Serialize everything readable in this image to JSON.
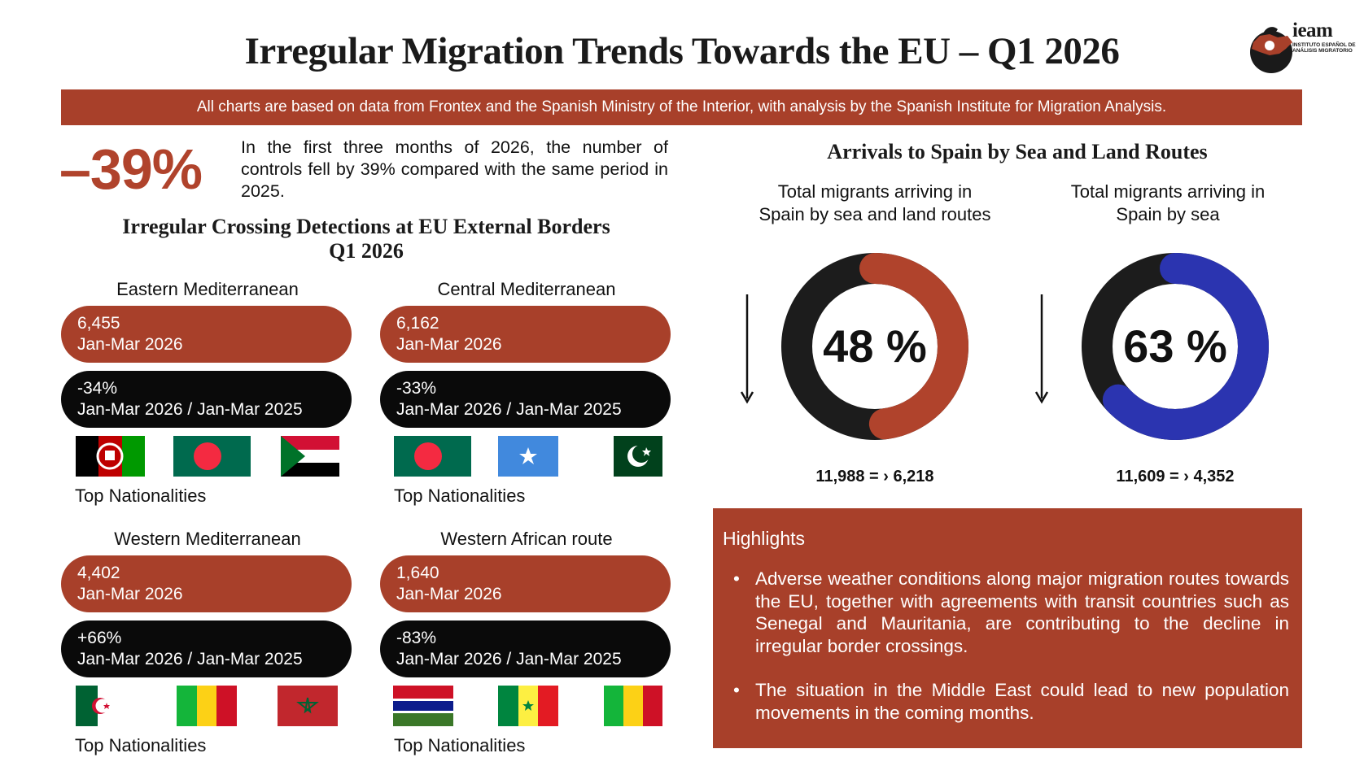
{
  "title": "Irregular Migration Trends Towards the EU – Q1 2026",
  "logo": {
    "name": "ieam",
    "subtitle": "INSTITUTO ESPAÑOL DE ANÁLISIS MIGRATORIO",
    "icon": "spain-map-logo-icon"
  },
  "banner": "All charts are based on data from Frontex and the Spanish Ministry of the Interior, with analysis by the Spanish Institute for Migration Analysis.",
  "headline_stat": {
    "value": "–39%",
    "text": "In the first three months of 2026, the number of controls fell by 39% compared with the same period in 2025."
  },
  "left_section": {
    "title_line1": "Irregular Crossing Detections at EU External Borders",
    "title_line2": "Q1 2026",
    "top_nationalities_label": "Top Nationalities",
    "routes": [
      {
        "name": "Eastern Mediterranean",
        "detections": "6,455",
        "period": "Jan-Mar 2026",
        "change": "-34%",
        "comparison": "Jan-Mar 2026 / Jan-Mar 2025",
        "flags": [
          "afghanistan-flag",
          "bangladesh-flag",
          "sudan-flag"
        ]
      },
      {
        "name": "Central Mediterranean",
        "detections": "6,162",
        "period": "Jan-Mar 2026",
        "change": "-33%",
        "comparison": "Jan-Mar 2026 / Jan-Mar 2025",
        "flags": [
          "bangladesh-flag",
          "somalia-flag",
          "pakistan-flag"
        ]
      },
      {
        "name": "Western Mediterranean",
        "detections": "4,402",
        "period": "Jan-Mar 2026",
        "change": "+66%",
        "comparison": "Jan-Mar 2026 / Jan-Mar 2025",
        "flags": [
          "algeria-flag",
          "mali-flag",
          "morocco-flag"
        ]
      },
      {
        "name": "Western African route",
        "detections": "1,640",
        "period": "Jan-Mar 2026",
        "change": "-83%",
        "comparison": "Jan-Mar 2026 / Jan-Mar 2025",
        "flags": [
          "gambia-flag",
          "senegal-flag",
          "mali-flag"
        ]
      }
    ]
  },
  "right_section": {
    "title": "Arrivals to Spain by Sea and Land Routes",
    "donuts": [
      {
        "caption_line1": "Total migrants arriving in",
        "caption_line2": "Spain by sea and land routes",
        "percent_label": "48 %",
        "fraction": 0.48,
        "color": "#b0432c",
        "track_color": "#1c1c1c",
        "flow": "11,988 = › 6,218"
      },
      {
        "caption_line1": "Total migrants arriving in",
        "caption_line2": "Spain by sea",
        "percent_label": "63 %",
        "fraction": 0.63,
        "color": "#2b34b0",
        "track_color": "#1c1c1c",
        "flow": "11,609 = › 4,352"
      }
    ]
  },
  "highlights": {
    "title": "Highlights",
    "items": [
      "Adverse weather conditions along major migration routes towards the EU, together with agreements with transit countries such as Senegal and Mauritania, are contributing to the decline in irregular border crossings.",
      "The situation in the Middle East could lead to new population movements in the coming months."
    ]
  },
  "colors": {
    "brand_red": "#a8402a",
    "pill_black": "#0a0a0a",
    "donut_blue": "#2b34b0"
  }
}
